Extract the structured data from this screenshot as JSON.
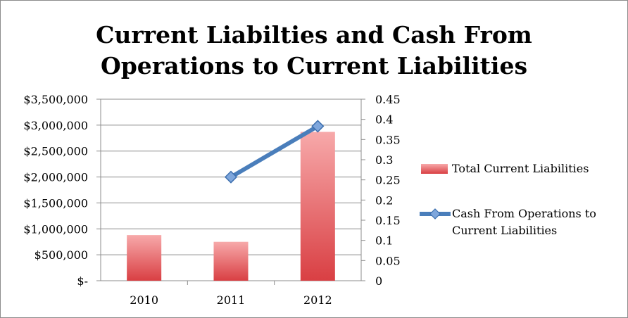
{
  "chart_data": {
    "type": "bar",
    "title_line1": "Current Liabilties and Cash From",
    "title_line2": "Operations to Current Liabilities",
    "categories": [
      "2010",
      "2011",
      "2012"
    ],
    "series": [
      {
        "name": "Total Current Liabilities",
        "type": "bar",
        "axis": "left",
        "values": [
          880000,
          750000,
          2870000
        ],
        "color": "#e8575a"
      },
      {
        "name": "Cash From Operations to Current Liabilities",
        "type": "line",
        "axis": "right",
        "values": [
          null,
          0.257,
          0.383
        ],
        "color": "#4a7ebb"
      }
    ],
    "y_left": {
      "range": [
        0,
        3500000
      ],
      "ticks": [
        "$-",
        "$500,000",
        "$1,000,000",
        "$1,500,000",
        "$2,000,000",
        "$2,500,000",
        "$3,000,000",
        "$3,500,000"
      ]
    },
    "y_right": {
      "range": [
        0,
        0.45
      ],
      "ticks": [
        "0",
        "0.05",
        "0.1",
        "0.15",
        "0.2",
        "0.25",
        "0.3",
        "0.35",
        "0.4",
        "0.45"
      ]
    },
    "grid": true,
    "legend": "right"
  }
}
